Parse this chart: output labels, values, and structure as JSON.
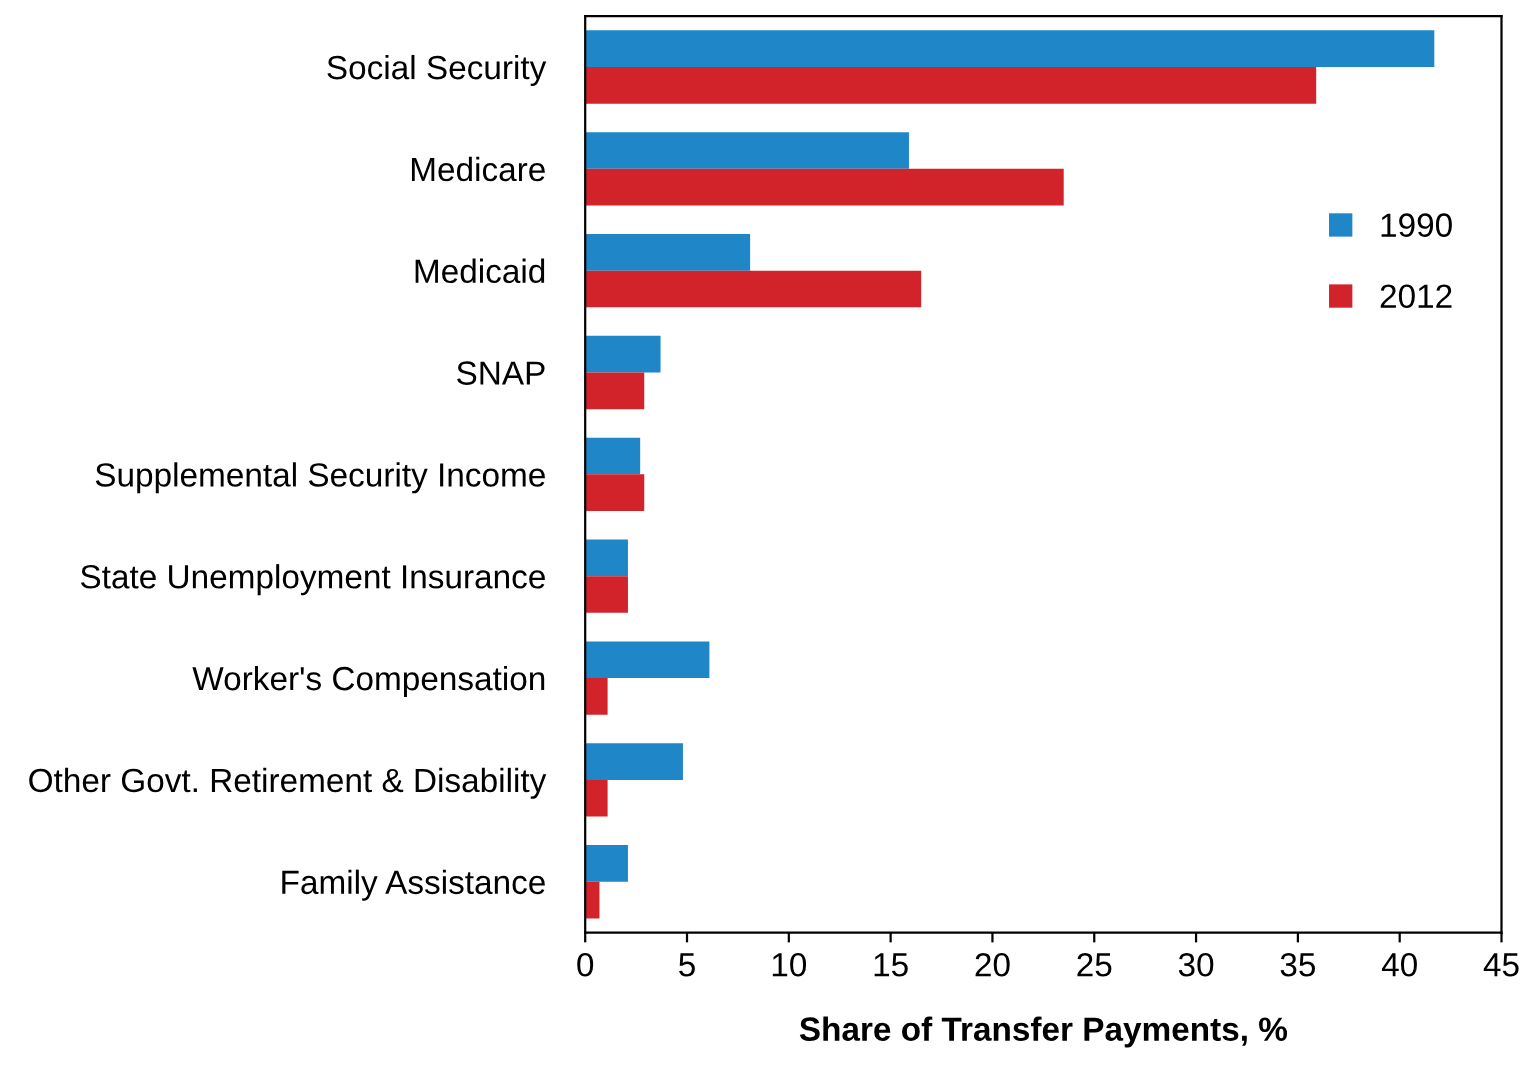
{
  "chart_data": {
    "type": "bar",
    "orientation": "horizontal",
    "xlabel": "Share of Transfer Payments, %",
    "categories": [
      "Social Security",
      "Medicare",
      "Medicaid",
      "SNAP",
      "Supplemental Security Income",
      "State Unemployment Insurance",
      "Worker's Compensation",
      "Other Govt. Retirement & Disability",
      "Family Assistance"
    ],
    "series": [
      {
        "name": "1990",
        "color": "#1f86c8",
        "values": [
          41.7,
          15.9,
          8.1,
          3.7,
          2.7,
          2.1,
          6.1,
          4.8,
          2.1
        ]
      },
      {
        "name": "2012",
        "color": "#d2232a",
        "values": [
          35.9,
          23.5,
          16.5,
          2.9,
          2.9,
          2.1,
          1.1,
          1.1,
          0.7
        ]
      }
    ],
    "xlim": [
      0,
      45
    ],
    "xticks": [
      0,
      5,
      10,
      15,
      20,
      25,
      30,
      35,
      40,
      45
    ],
    "grid": false,
    "legend": "right"
  }
}
